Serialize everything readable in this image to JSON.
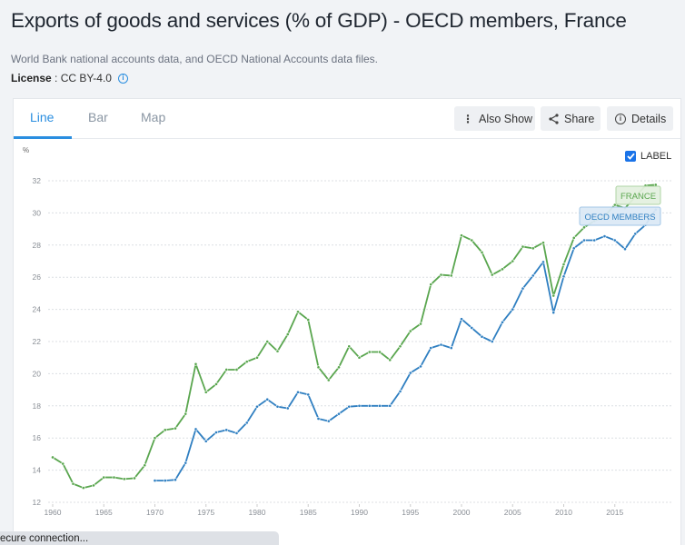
{
  "page": {
    "title": "Exports of goods and services (% of GDP) - OECD members, France",
    "source": "World Bank national accounts data, and OECD National Accounts data files.",
    "license_label": "License",
    "license_sep": " : ",
    "license_value": "CC BY-4.0",
    "info_icon": "i"
  },
  "tabs": [
    {
      "label": "Line",
      "active": true
    },
    {
      "label": "Bar",
      "active": false
    },
    {
      "label": "Map",
      "active": false
    }
  ],
  "toolbar": {
    "also_show_label": "Also Show",
    "also_show_icon": "⋮",
    "share_label": "Share",
    "details_label": "Details",
    "details_icon": "i"
  },
  "label_toggle": {
    "label": "LABEL",
    "checked": true
  },
  "status_bar": {
    "text": "ecure connection..."
  },
  "colors": {
    "accent": "#2a8ee0",
    "france": "#5aa64f",
    "oecd": "#2f7fc1"
  },
  "chart_data": {
    "type": "line",
    "title": "Exports of goods and services (% of GDP) - OECD members, France",
    "xlabel": "",
    "ylabel": "%",
    "xlim": [
      1960,
      2019
    ],
    "ylim": [
      12,
      32
    ],
    "x_ticks": [
      1960,
      1965,
      1970,
      1975,
      1980,
      1985,
      1990,
      1995,
      2000,
      2005,
      2010,
      2015
    ],
    "y_ticks": [
      12,
      14,
      16,
      18,
      20,
      22,
      24,
      26,
      28,
      30,
      32
    ],
    "grid": true,
    "legend": "inline-labels-right",
    "series": [
      {
        "name": "FRANCE",
        "color": "#5aa64f",
        "start_year": 1960,
        "values": [
          14.8,
          14.4,
          13.15,
          12.9,
          13.05,
          13.55,
          13.55,
          13.45,
          13.5,
          14.3,
          16.0,
          16.5,
          16.6,
          17.5,
          20.6,
          18.85,
          19.35,
          20.25,
          20.25,
          20.75,
          21.0,
          22.0,
          21.4,
          22.45,
          23.85,
          23.35,
          20.4,
          19.6,
          20.4,
          21.7,
          21.0,
          21.35,
          21.35,
          20.85,
          21.7,
          22.65,
          23.1,
          25.55,
          26.15,
          26.1,
          28.6,
          28.3,
          27.55,
          26.15,
          26.5,
          27.0,
          27.9,
          27.8,
          28.15,
          24.85,
          26.8,
          28.45,
          29.1,
          29.5,
          29.8,
          30.5,
          30.3,
          31.0,
          31.7,
          31.75
        ]
      },
      {
        "name": "OECD MEMBERS",
        "color": "#2f7fc1",
        "start_year": 1970,
        "values": [
          13.35,
          13.35,
          13.4,
          14.45,
          16.55,
          15.8,
          16.35,
          16.5,
          16.3,
          16.95,
          17.95,
          18.4,
          17.95,
          17.85,
          18.85,
          18.7,
          17.2,
          17.05,
          17.5,
          17.95,
          18.0,
          18.0,
          18.0,
          18.0,
          18.9,
          20.05,
          20.45,
          21.6,
          21.8,
          21.6,
          23.4,
          22.85,
          22.3,
          22.0,
          23.2,
          24.0,
          25.3,
          26.1,
          26.95,
          23.8,
          26.05,
          27.8,
          28.3,
          28.3,
          28.55,
          28.3,
          27.75,
          28.7,
          29.25,
          30.2
        ]
      }
    ]
  }
}
